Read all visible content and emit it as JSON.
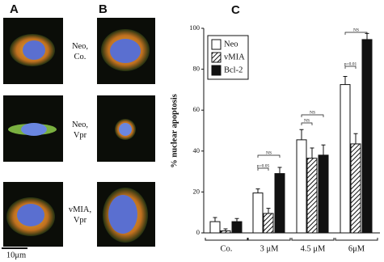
{
  "panels": {
    "a": "A",
    "b": "B",
    "c": "C"
  },
  "row_labels": [
    [
      "Neo,",
      "Co."
    ],
    [
      "Neo,",
      "Vpr"
    ],
    [
      "vMIA,",
      "Vpr"
    ]
  ],
  "scale_bar": "10μm",
  "chart_data": {
    "type": "bar",
    "ylabel": "% nuclear apoptosis",
    "categories": [
      "Co.",
      "3 μM",
      "4.5 μM",
      "6μM"
    ],
    "series": [
      {
        "name": "Neo",
        "color": "#ffffff",
        "values": [
          5.5,
          19.5,
          45.5,
          72.5
        ],
        "errors": [
          2,
          2,
          5,
          4
        ]
      },
      {
        "name": "vMIA",
        "color": "hatch",
        "values": [
          1,
          9.5,
          36.5,
          43.5
        ],
        "errors": [
          1,
          2.5,
          5,
          5
        ]
      },
      {
        "name": "Bcl-2",
        "color": "#111111",
        "values": [
          5.5,
          29,
          38,
          94.5
        ],
        "errors": [
          1.5,
          3,
          5,
          3
        ]
      }
    ],
    "ylim": [
      0,
      100
    ],
    "yticks": [
      0,
      20,
      40,
      60,
      80,
      100
    ],
    "annotations": [
      "NS",
      "p=0.05",
      "NS",
      "NS",
      "p=0.01",
      "NS"
    ]
  }
}
